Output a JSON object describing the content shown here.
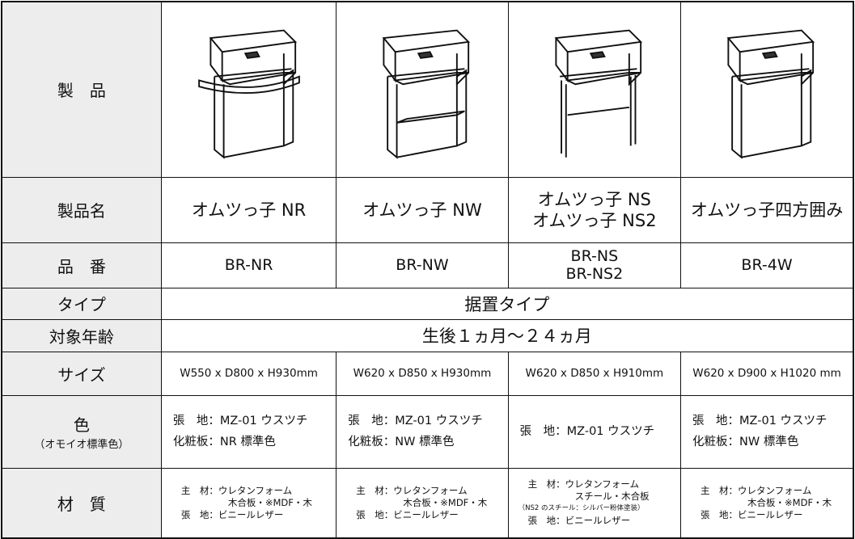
{
  "labels": {
    "product": "製　品",
    "name": "製品名",
    "number": "品　番",
    "type": "タイプ",
    "age": "対象年齢",
    "size": "サイズ",
    "color": "色",
    "color_note": "（オモイオ標準色）",
    "material": "材　質"
  },
  "type": "据置タイプ",
  "age": "生後１ヵ月〜２４ヵ月",
  "products": [
    {
      "name": [
        "オムツっ子 NR"
      ],
      "number": [
        "BR-NR"
      ],
      "size": "W550 x D800 x H930mm",
      "color": [
        "張　地：MZ-01 ウスツチ",
        "化粧板：NR 標準色"
      ],
      "material": [
        "主　材：ウレタンフォーム",
        "木合板・※MDF・木",
        "張　地：ビニールレザー"
      ]
    },
    {
      "name": [
        "オムツっ子 NW"
      ],
      "number": [
        "BR-NW"
      ],
      "size": "W620 x D850 x H930mm",
      "color": [
        "張　地：MZ-01 ウスツチ",
        "化粧板：NW 標準色"
      ],
      "material": [
        "主　材：ウレタンフォーム",
        "木合板・※MDF・木",
        "張　地：ビニールレザー"
      ]
    },
    {
      "name": [
        "オムツっ子 NS",
        "オムツっ子 NS2"
      ],
      "number": [
        "BR-NS",
        "BR-NS2"
      ],
      "size": "W620 x D850 x H910mm",
      "color": [
        "張　地：MZ-01 ウスツチ"
      ],
      "material": [
        "主　材：ウレタンフォーム",
        "スチール・木合板",
        "（NS2 のスチール：シルバー粉体塗装）",
        "張　地：ビニールレザー"
      ]
    },
    {
      "name": [
        "オムツっ子四方囲み"
      ],
      "number": [
        "BR-4W"
      ],
      "size": "W620 x D900 x H1020 mm",
      "color": [
        "張　地：MZ-01 ウスツチ",
        "化粧板：NW 標準色"
      ],
      "material": [
        "主　材：ウレタンフォーム",
        "木合板・※MDF・木",
        "張　地：ビニールレザー"
      ]
    }
  ]
}
